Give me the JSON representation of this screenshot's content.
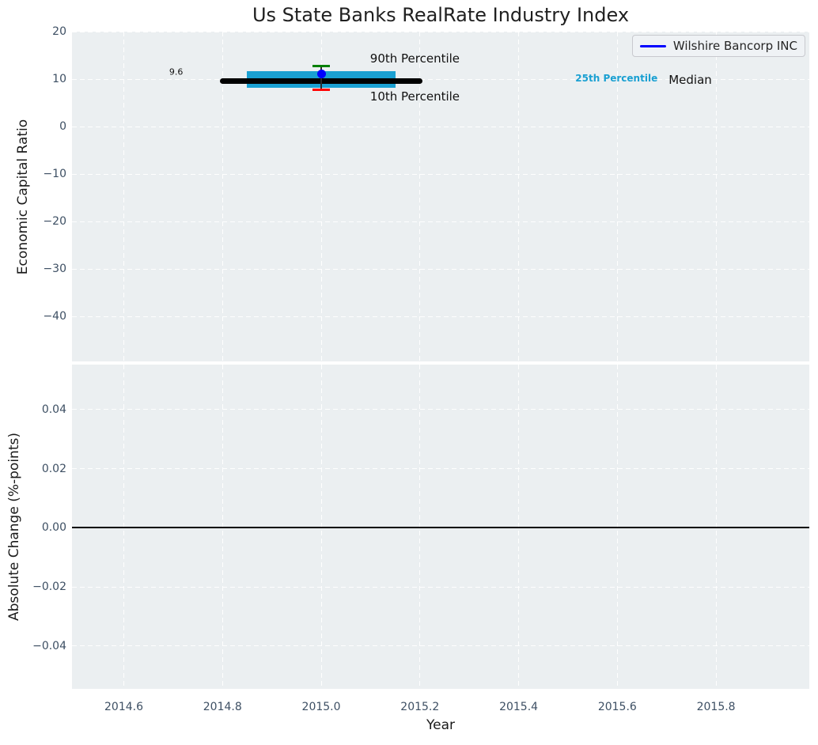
{
  "colors": {
    "axes_background": "#ebeff1",
    "grid": "#ffffff",
    "tick_label": "#3d4f63",
    "text": "#1a1a1a",
    "median_line": "#000000",
    "iqr_band": "#1aa0d2",
    "p90_marker": "#008000",
    "p10_marker": "#ff0000",
    "whisker": "#2b2b2b",
    "company_marker": "#0000ff",
    "legend_line": "#0000ff",
    "zero_line": "#000000",
    "annotation_cyan": "#1aa0d2"
  },
  "chart_data": [
    {
      "type": "box",
      "subplot": "top",
      "title": "Us State Banks RealRate Industry Index",
      "ylabel": "Economic Capital Ratio",
      "ylim": [
        -49.5,
        20
      ],
      "xlim": [
        2014.495,
        2015.989
      ],
      "yticks": [
        20,
        10,
        0,
        -10,
        -20,
        -30,
        -40
      ],
      "ytick_labels": [
        "20",
        "10",
        "0",
        "−10",
        "−20",
        "−30",
        "−40"
      ],
      "grid": true,
      "legend": {
        "position": "upper right",
        "entries": [
          {
            "label": "Wilshire Bancorp INC",
            "color": "#0000ff"
          }
        ]
      },
      "industry_percentiles": {
        "year": 2015.0,
        "median": 9.6,
        "p25": 8.2,
        "p75": 11.7,
        "p10": 7.8,
        "p90": 12.8,
        "median_span": [
          2014.8,
          2015.2
        ],
        "iqr_span": [
          2014.85,
          2015.15
        ]
      },
      "company_series": [
        {
          "x": 2015.0,
          "y": 11.1
        }
      ],
      "annotations": [
        {
          "text": "9.6",
          "x": 2014.692,
          "y": 11.5,
          "style": "small-dark",
          "name": "median-value-label"
        },
        {
          "text": "90th Percentile",
          "x": 2015.099,
          "y": 14.33,
          "style": "normal-dark",
          "name": "annotation-90th-percentile"
        },
        {
          "text": "10th Percentile",
          "x": 2015.099,
          "y": 6.33,
          "style": "normal-dark",
          "name": "annotation-10th-percentile"
        },
        {
          "text": "25th Percentile",
          "x": 2015.515,
          "y": 10.17,
          "style": "small-cyan-bold",
          "name": "annotation-25th-percentile"
        },
        {
          "text": "Median",
          "x": 2015.704,
          "y": 9.83,
          "style": "normal-dark",
          "name": "annotation-median"
        }
      ]
    },
    {
      "type": "line",
      "subplot": "bottom",
      "ylabel": "Absolute Change (%-points)",
      "xlabel": "Year",
      "ylim": [
        -0.0545,
        0.0552
      ],
      "xlim": [
        2014.495,
        2015.989
      ],
      "yticks": [
        0.04,
        0.02,
        0.0,
        -0.02,
        -0.04
      ],
      "ytick_labels": [
        "0.04",
        "0.02",
        "0.00",
        "−0.02",
        "−0.04"
      ],
      "xticks": [
        2014.6,
        2014.8,
        2015.0,
        2015.2,
        2015.4,
        2015.6,
        2015.8
      ],
      "xtick_labels": [
        "2014.6",
        "2014.8",
        "2015.0",
        "2015.2",
        "2015.4",
        "2015.6",
        "2015.8"
      ],
      "grid": true,
      "zero_line": 0.0,
      "series": []
    }
  ]
}
